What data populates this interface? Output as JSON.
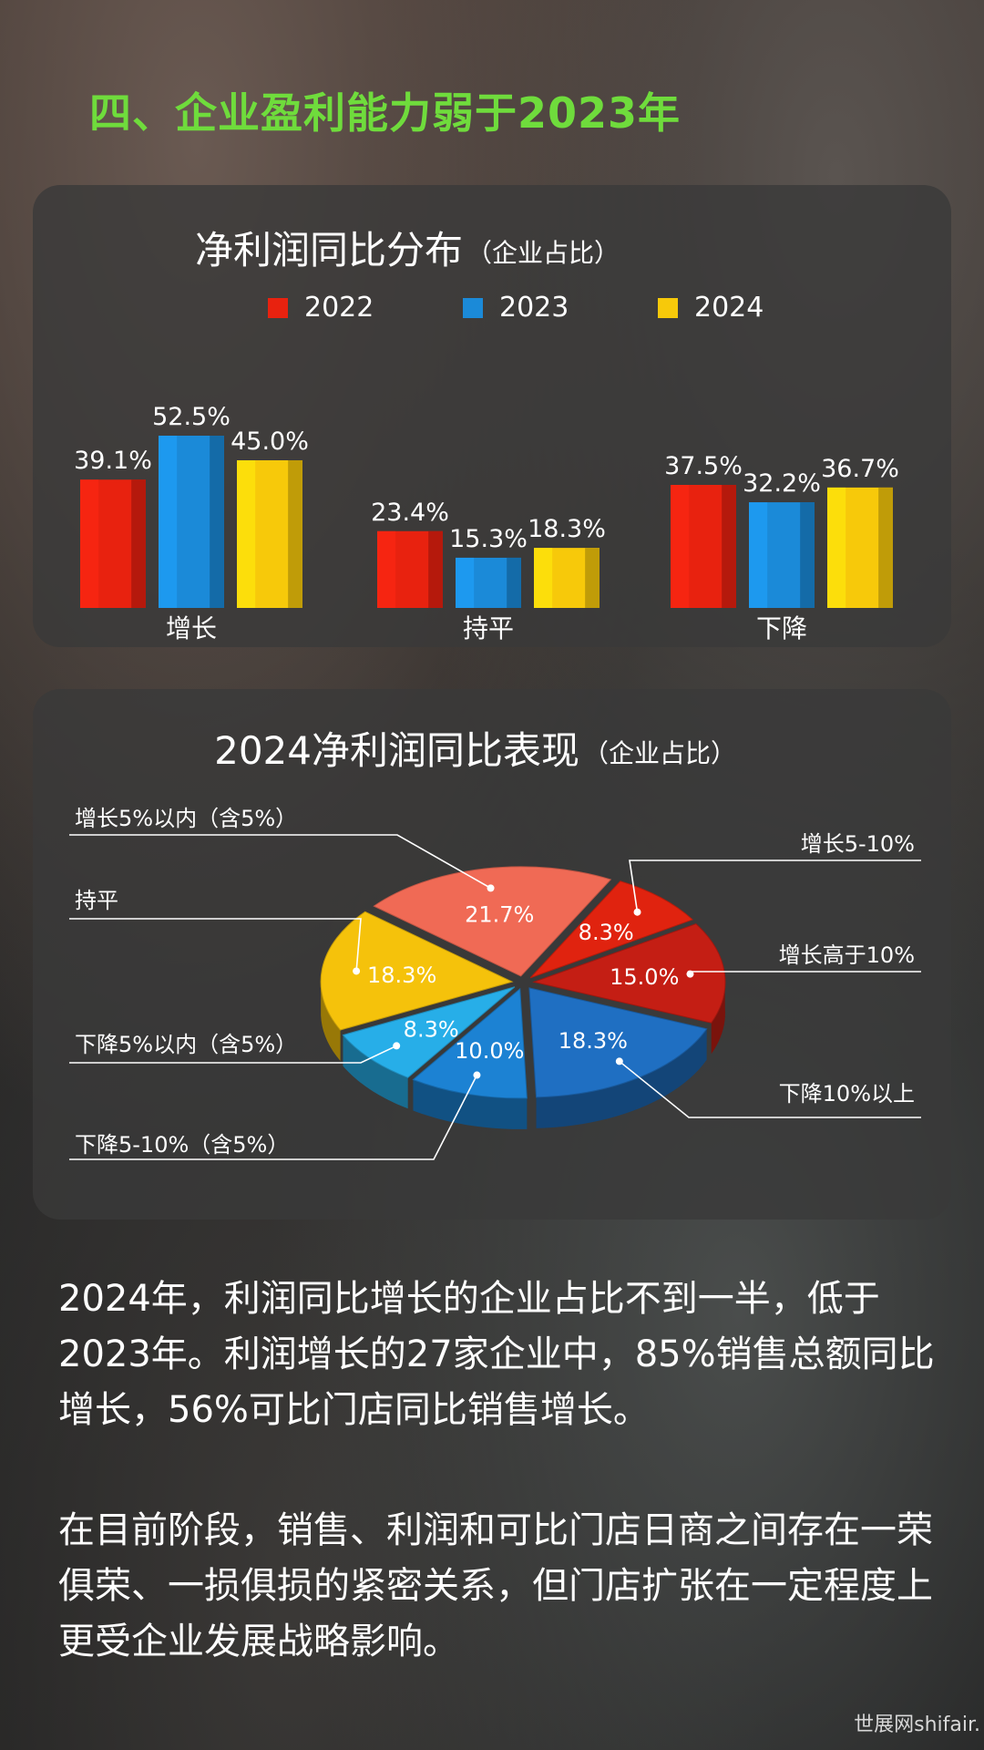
{
  "page": {
    "title": "四、企业盈利能力弱于2023年",
    "paragraph1": "2024年，利润同比增长的企业占比不到一半，低于2023年。利润增长的27家企业中，85%销售总额同比增长，56%可比门店同比销售增长。",
    "paragraph2": "在目前阶段，销售、利润和可比门店日商之间存在一荣俱荣、一损俱损的紧密关系，但门店扩张在一定程度上更受企业发展战略影响。",
    "watermark": "世展网shifair."
  },
  "chart_data": [
    {
      "type": "bar",
      "title": "净利润同比分布",
      "subtitle": "（企业占比）",
      "categories": [
        "增长",
        "持平",
        "下降"
      ],
      "series": [
        {
          "name": "2022",
          "color": "#e8220f",
          "values": [
            39.1,
            23.4,
            37.5
          ],
          "labels": [
            "39.1%",
            "23.4%",
            "37.5%"
          ]
        },
        {
          "name": "2023",
          "color": "#1b8ad8",
          "values": [
            52.5,
            15.3,
            32.2
          ],
          "labels": [
            "52.5%",
            "15.3%",
            "32.2%"
          ]
        },
        {
          "name": "2024",
          "color": "#f7c90a",
          "values": [
            45.0,
            18.3,
            36.7
          ],
          "labels": [
            "45.0%",
            "18.3%",
            "36.7%"
          ]
        }
      ],
      "legend_position": "top",
      "ylim": [
        0,
        55
      ],
      "grid": false
    },
    {
      "type": "pie",
      "title": "2024净利润同比表现",
      "subtitle": "（企业占比）",
      "slices": [
        {
          "label": "增长5-10%",
          "value": 8.3,
          "text": "8.3%",
          "color": "#e0230f"
        },
        {
          "label": "增长高于10%",
          "value": 15.0,
          "text": "15.0%",
          "color": "#c41e14"
        },
        {
          "label": "下降10%以上",
          "value": 18.3,
          "text": "18.3%",
          "color": "#1f6fc2"
        },
        {
          "label": "下降5-10%（含5%）",
          "value": 10.0,
          "text": "10.0%",
          "color": "#1c82d3"
        },
        {
          "label": "下降5%以内（含5%）",
          "value": 8.3,
          "text": "8.3%",
          "color": "#27aee8"
        },
        {
          "label": "持平",
          "value": 18.3,
          "text": "18.3%",
          "color": "#f5c20b"
        },
        {
          "label": "增长5%以内（含5%）",
          "value": 21.7,
          "text": "21.7%",
          "color": "#f06a55"
        }
      ]
    }
  ]
}
